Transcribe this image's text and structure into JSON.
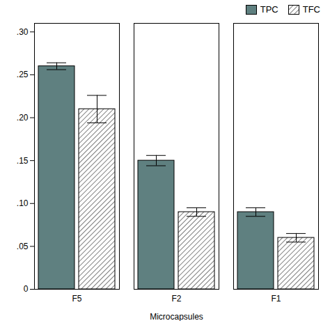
{
  "chart_data": {
    "type": "bar",
    "xlabel": "Microcapsules",
    "categories": [
      "F5",
      "F2",
      "F1"
    ],
    "series": [
      {
        "name": "TPC",
        "color": "#5f8080",
        "values": [
          0.26,
          0.15,
          0.09
        ],
        "errors": [
          0.004,
          0.006,
          0.005
        ]
      },
      {
        "name": "TFC",
        "color": "white",
        "values": [
          0.21,
          0.09,
          0.06
        ],
        "errors": [
          0.016,
          0.005,
          0.005
        ]
      }
    ],
    "ylim": [
      0,
      0.31
    ],
    "yticks": [
      0,
      {
        "value": 0.05,
        "label": ".05"
      },
      {
        "value": 0.1,
        "label": ".10"
      },
      {
        "value": 0.15,
        "label": ".15"
      },
      {
        "value": 0.2,
        "label": ".20"
      },
      {
        "value": 0.25,
        "label": ".25"
      },
      {
        "value": 0.3,
        "label": ".30"
      }
    ],
    "legend": "upper right",
    "grid": false
  }
}
